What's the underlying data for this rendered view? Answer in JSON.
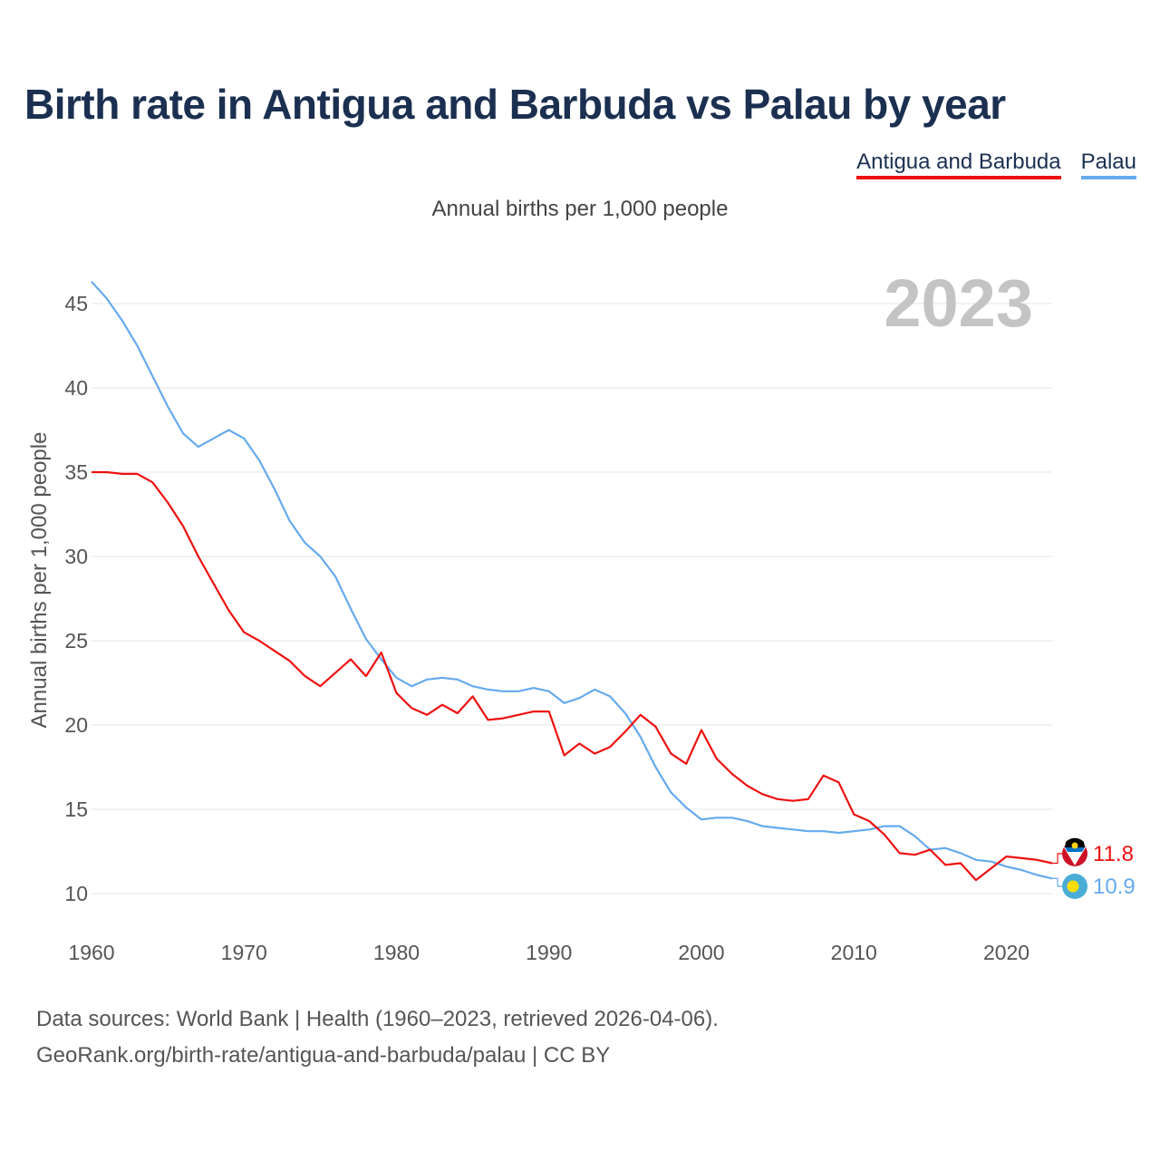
{
  "title": "Birth rate in Antigua and Barbuda vs Palau by year",
  "legend": [
    {
      "label": "Antigua and Barbuda",
      "color": "#ee1111"
    },
    {
      "label": "Palau",
      "color": "#66aaee"
    }
  ],
  "subtitle": "Annual births per 1,000 people",
  "footer": {
    "line1": "Data sources: World Bank | Health (1960–2023, retrieved 2026-04-06).",
    "line2": "GeoRank.org/birth-rate/antigua-and-barbuda/palau | CC BY"
  },
  "chart_data": {
    "type": "line",
    "title": "Birth rate in Antigua and Barbuda vs Palau by year",
    "ylabel": "Annual births per 1,000 people",
    "xlabel": "",
    "year_label": "2023",
    "xlim": [
      1960,
      2023
    ],
    "ylim": [
      10,
      45
    ],
    "x_ticks": [
      1960,
      1970,
      1980,
      1990,
      2000,
      2010,
      2020
    ],
    "y_ticks": [
      10,
      15,
      20,
      25,
      30,
      35,
      40,
      45
    ],
    "grid": true,
    "legend_position": "top-right",
    "x": [
      1960,
      1961,
      1962,
      1963,
      1964,
      1965,
      1966,
      1967,
      1968,
      1969,
      1970,
      1971,
      1972,
      1973,
      1974,
      1975,
      1976,
      1977,
      1978,
      1979,
      1980,
      1981,
      1982,
      1983,
      1984,
      1985,
      1986,
      1987,
      1988,
      1989,
      1990,
      1991,
      1992,
      1993,
      1994,
      1995,
      1996,
      1997,
      1998,
      1999,
      2000,
      2001,
      2002,
      2003,
      2004,
      2005,
      2006,
      2007,
      2008,
      2009,
      2010,
      2011,
      2012,
      2013,
      2014,
      2015,
      2016,
      2017,
      2018,
      2019,
      2020,
      2021,
      2022,
      2023
    ],
    "series": [
      {
        "name": "Antigua and Barbuda",
        "color": "#ee1111",
        "end_label": "11.8",
        "values": [
          35.0,
          35.0,
          34.9,
          34.9,
          34.4,
          33.2,
          31.8,
          30.0,
          28.4,
          26.8,
          25.5,
          25.0,
          24.4,
          23.8,
          22.9,
          22.3,
          23.1,
          23.9,
          22.9,
          24.3,
          21.9,
          21.0,
          20.6,
          21.2,
          20.7,
          21.7,
          20.3,
          20.4,
          20.6,
          20.8,
          20.8,
          18.2,
          18.9,
          18.3,
          18.7,
          19.6,
          20.6,
          19.9,
          18.3,
          17.7,
          19.7,
          18.0,
          17.1,
          16.4,
          15.9,
          15.6,
          15.5,
          15.6,
          17.0,
          16.6,
          14.7,
          14.3,
          13.5,
          12.4,
          12.3,
          12.6,
          11.7,
          11.8,
          10.8,
          11.5,
          12.2,
          12.1,
          12.0,
          11.8
        ]
      },
      {
        "name": "Palau",
        "color": "#66aaee",
        "end_label": "10.9",
        "values": [
          46.3,
          45.3,
          44.0,
          42.5,
          40.7,
          38.9,
          37.3,
          36.5,
          37.0,
          37.5,
          37.0,
          35.7,
          34.0,
          32.1,
          30.8,
          30.0,
          28.8,
          26.9,
          25.1,
          23.9,
          22.8,
          22.3,
          22.7,
          22.8,
          22.7,
          22.3,
          22.1,
          22.0,
          22.0,
          22.2,
          22.0,
          21.3,
          21.6,
          22.1,
          21.7,
          20.7,
          19.3,
          17.5,
          16.0,
          15.1,
          14.4,
          14.5,
          14.5,
          14.3,
          14.0,
          13.9,
          13.8,
          13.7,
          13.7,
          13.6,
          13.7,
          13.8,
          14.0,
          14.0,
          13.4,
          12.6,
          12.7,
          12.4,
          12.0,
          11.9,
          11.6,
          11.4,
          11.1,
          10.9
        ]
      }
    ]
  }
}
